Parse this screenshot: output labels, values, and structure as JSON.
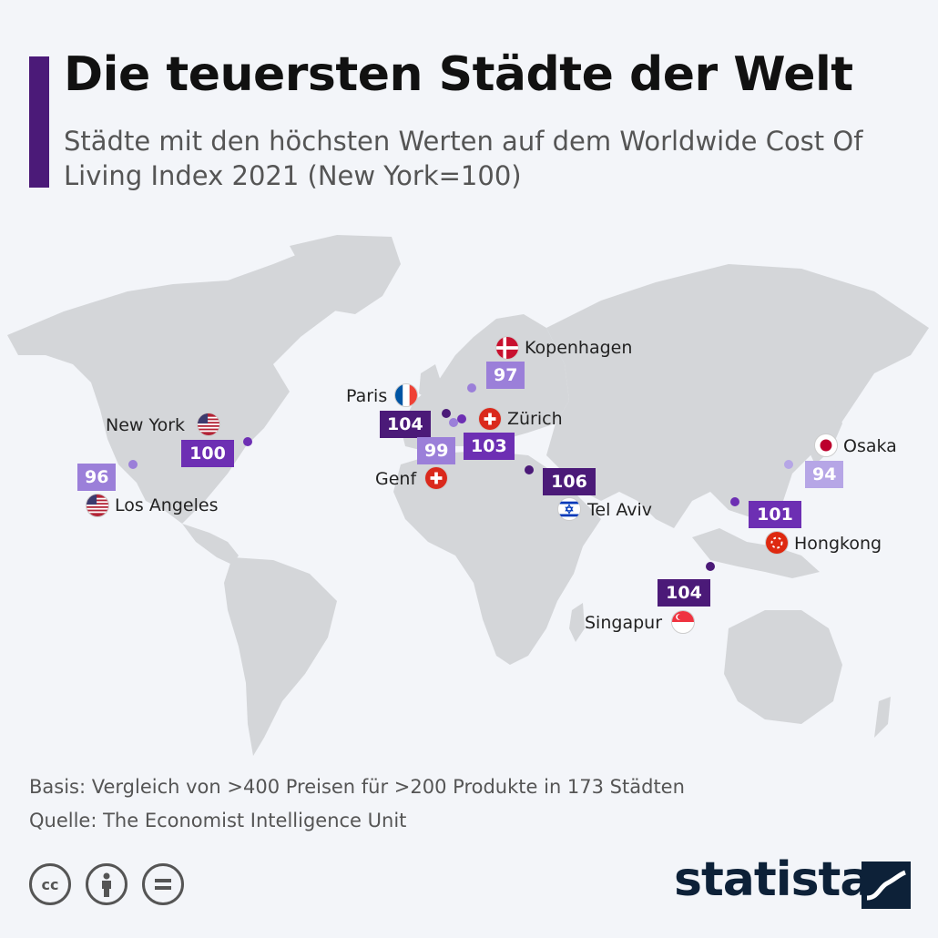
{
  "title": "Die teuersten Städte der Welt",
  "subtitle": "Städte mit den höchsten Werten auf dem Worldwide Cost Of Living Index 2021 (New York=100)",
  "colors": {
    "accent": "#4b1a78",
    "dark": "#4b1a78",
    "mid": "#6d2fb3",
    "light": "#9b7fd9",
    "lighter": "#b6a6e6",
    "land": "#d4d6d9",
    "background": "#f3f5f9"
  },
  "cities": [
    {
      "name": "Kopenhagen",
      "value": "97",
      "flag": "denmark-flag"
    },
    {
      "name": "Paris",
      "value": "104",
      "flag": "france-flag"
    },
    {
      "name": "Zürich",
      "value": "103",
      "flag": "switzerland-flag"
    },
    {
      "name": "Genf",
      "value": "99",
      "flag": "switzerland-flag"
    },
    {
      "name": "New York",
      "value": "100",
      "flag": "usa-flag"
    },
    {
      "name": "Los Angeles",
      "value": "96",
      "flag": "usa-flag"
    },
    {
      "name": "Tel Aviv",
      "value": "106",
      "flag": "israel-flag"
    },
    {
      "name": "Osaka",
      "value": "94",
      "flag": "japan-flag"
    },
    {
      "name": "Hongkong",
      "value": "101",
      "flag": "hongkong-flag"
    },
    {
      "name": "Singapur",
      "value": "104",
      "flag": "singapore-flag"
    }
  ],
  "footer": {
    "basis": "Basis: Vergleich von >400 Preisen für >200 Produkte in 173 Städten",
    "source": "Quelle: The Economist Intelligence Unit"
  },
  "license_icons": [
    "cc-icon",
    "attribution-icon",
    "noderivs-icon"
  ],
  "logo": "statista"
}
